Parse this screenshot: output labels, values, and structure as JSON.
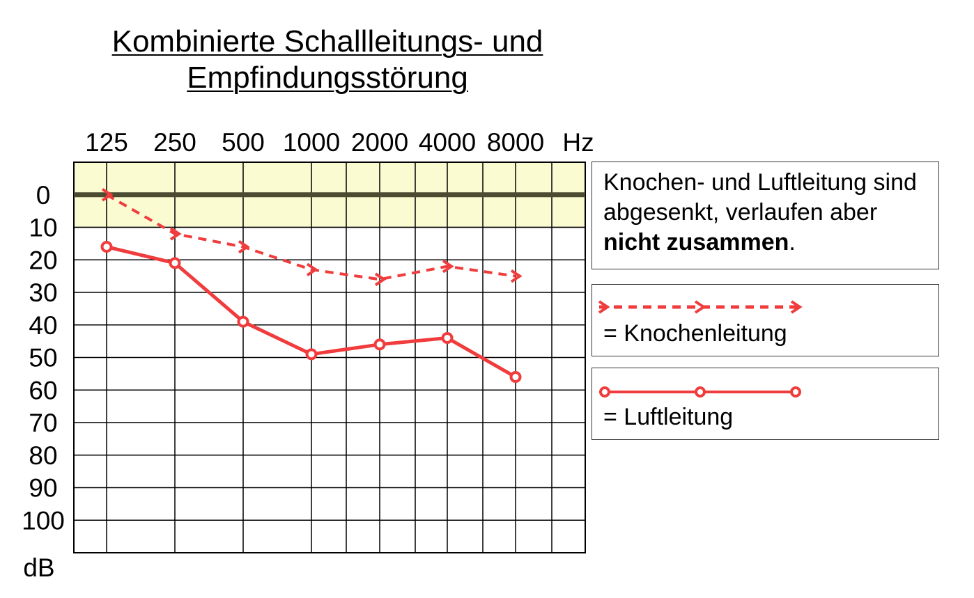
{
  "title": {
    "line1": "Kombinierte Schallleitungs- und",
    "line2": "Empfindungsstörung "
  },
  "description": {
    "text_before": "Knochen- und Luftleitung sind abgesenkt, verlaufen aber ",
    "text_bold": "nicht zusammen",
    "text_after": "."
  },
  "legend": {
    "bone": "= Knochenleitung",
    "air": "= Luftleitung"
  },
  "colors": {
    "series": "#f03c3c",
    "normal_band": "#fbfbd2",
    "zero_line": "#4b4b32"
  },
  "chart_data": {
    "type": "line",
    "x_categories": [
      "125",
      "250",
      "500",
      "1000",
      "2000",
      "4000",
      "8000"
    ],
    "x_unit": "Hz",
    "y_ticks": [
      0,
      10,
      20,
      30,
      40,
      50,
      60,
      70,
      80,
      90,
      100
    ],
    "y_unit": "dB",
    "y_inverted": true,
    "ylim": [
      -10,
      110
    ],
    "normal_range": [
      -10,
      10
    ],
    "grid": true,
    "series": [
      {
        "name": "Knochenleitung",
        "style": "dashed",
        "marker": "arrow",
        "values": [
          0,
          12,
          16,
          23,
          26,
          22,
          25
        ]
      },
      {
        "name": "Luftleitung",
        "style": "solid",
        "marker": "circle",
        "values": [
          16,
          21,
          39,
          49,
          46,
          44,
          56
        ]
      }
    ]
  }
}
